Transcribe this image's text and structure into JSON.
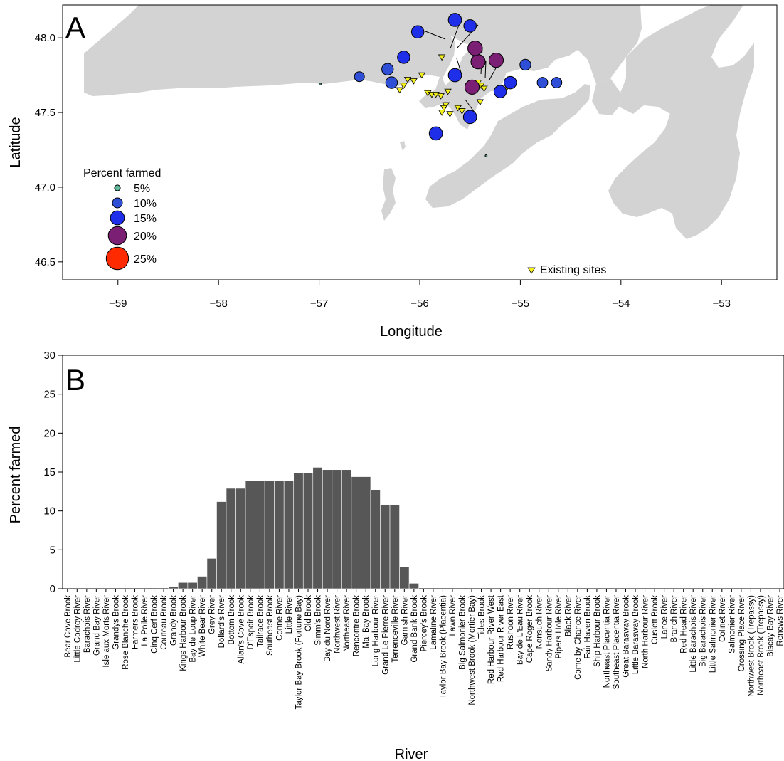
{
  "chart_data": [
    {
      "type": "scatter",
      "panel_label": "A",
      "xlabel": "Longitude",
      "ylabel": "Latitude",
      "xlim": [
        -59.55,
        -52.45
      ],
      "ylim": [
        46.38,
        48.22
      ],
      "xticks": [
        -59,
        -58,
        -57,
        -56,
        -55,
        -54,
        -53
      ],
      "xtick_labels": [
        "−59",
        "−58",
        "−57",
        "−56",
        "−55",
        "−54",
        "−53"
      ],
      "yticks": [
        46.5,
        47.0,
        47.5,
        48.0
      ],
      "ytick_labels": [
        "46.5",
        "47.0",
        "47.5",
        "48.0"
      ],
      "background": "land map of southern Newfoundland",
      "size_legend": {
        "title": "Percent farmed",
        "entries": [
          {
            "label": "5%",
            "value": 5,
            "color": "#5fb89a"
          },
          {
            "label": "10%",
            "value": 10,
            "color": "#2f4fd6"
          },
          {
            "label": "15%",
            "value": 15,
            "color": "#1f2ee8"
          },
          {
            "label": "20%",
            "value": 20,
            "color": "#7a1f74"
          },
          {
            "label": "25%",
            "value": 25,
            "color": "#ff2a00"
          }
        ]
      },
      "sites_legend": {
        "label": "Existing sites",
        "color": "#f2ef1c"
      },
      "colors": {
        "land": "#d3d3d3",
        "c5": "#5fb89a",
        "c10": "#2f4fd6",
        "c15": "#1f2ee8",
        "c20": "#7a1f74",
        "c25": "#ff2a00"
      },
      "rivers": [
        {
          "lon": -56.99,
          "lat": 47.69,
          "pct": 0.3
        },
        {
          "lon": -55.34,
          "lat": 47.21,
          "pct": 0.3
        },
        {
          "lon": -56.6,
          "lat": 47.74,
          "pct": 10
        },
        {
          "lon": -56.32,
          "lat": 47.79,
          "pct": 12
        },
        {
          "lon": -56.28,
          "lat": 47.7,
          "pct": 12
        },
        {
          "lon": -56.16,
          "lat": 47.87,
          "pct": 13
        },
        {
          "lon": -56.02,
          "lat": 48.04,
          "pct": 13
        },
        {
          "lon": -55.65,
          "lat": 48.12,
          "pct": 14
        },
        {
          "lon": -55.5,
          "lat": 48.08,
          "pct": 13
        },
        {
          "lon": -55.65,
          "lat": 47.75,
          "pct": 14
        },
        {
          "lon": -55.45,
          "lat": 47.93,
          "pct": 15.5
        },
        {
          "lon": -55.42,
          "lat": 47.84,
          "pct": 15.3
        },
        {
          "lon": -55.24,
          "lat": 47.85,
          "pct": 15.3
        },
        {
          "lon": -55.48,
          "lat": 47.67,
          "pct": 15.3
        },
        {
          "lon": -55.5,
          "lat": 47.47,
          "pct": 14
        },
        {
          "lon": -55.2,
          "lat": 47.64,
          "pct": 13
        },
        {
          "lon": -55.1,
          "lat": 47.7,
          "pct": 13
        },
        {
          "lon": -54.95,
          "lat": 47.82,
          "pct": 11.2
        },
        {
          "lon": -54.78,
          "lat": 47.7,
          "pct": 10.7
        },
        {
          "lon": -54.64,
          "lat": 47.7,
          "pct": 10.7
        },
        {
          "lon": -55.84,
          "lat": 47.36,
          "pct": 14
        }
      ],
      "sites": [
        {
          "lon": -55.78,
          "lat": 47.87
        },
        {
          "lon": -55.98,
          "lat": 47.75
        },
        {
          "lon": -56.12,
          "lat": 47.72
        },
        {
          "lon": -56.06,
          "lat": 47.71
        },
        {
          "lon": -56.16,
          "lat": 47.68
        },
        {
          "lon": -56.2,
          "lat": 47.65
        },
        {
          "lon": -55.92,
          "lat": 47.63
        },
        {
          "lon": -55.88,
          "lat": 47.62
        },
        {
          "lon": -55.84,
          "lat": 47.62
        },
        {
          "lon": -55.79,
          "lat": 47.61
        },
        {
          "lon": -55.72,
          "lat": 47.64
        },
        {
          "lon": -55.74,
          "lat": 47.55
        },
        {
          "lon": -55.76,
          "lat": 47.53
        },
        {
          "lon": -55.78,
          "lat": 47.5
        },
        {
          "lon": -55.7,
          "lat": 47.49
        },
        {
          "lon": -55.62,
          "lat": 47.53
        },
        {
          "lon": -55.58,
          "lat": 47.51
        },
        {
          "lon": -55.42,
          "lat": 47.7
        },
        {
          "lon": -55.39,
          "lat": 47.68
        },
        {
          "lon": -55.36,
          "lat": 47.66
        },
        {
          "lon": -55.4,
          "lat": 47.57
        },
        {
          "lon": -55.46,
          "lat": 47.66
        },
        {
          "lon": -55.15,
          "lat": 47.65
        }
      ]
    },
    {
      "type": "bar",
      "panel_label": "B",
      "xlabel": "River",
      "ylabel": "Percent farmed",
      "ylim": [
        0,
        30
      ],
      "yticks": [
        0,
        5,
        10,
        15,
        20,
        25,
        30
      ],
      "categories": [
        "Bear Cove Brook",
        "Little Codroy River",
        "Barachois River",
        "Grand Bay River",
        "Isle aux Morts River",
        "Grandys Brook",
        "Rose Blanche Brook",
        "Farmers Brook",
        "La Poile River",
        "Cinq Cerf Brook",
        "Couteau Brook",
        "Grandy Brook",
        "Kings Harbour Brook",
        "Bay de Loup River",
        "White Bear River",
        "Grey River",
        "Dollard's River",
        "Bottom Brook",
        "Allan's Cove Brook",
        "D'Espoir Brook",
        "Tailrace Brook",
        "Southeast Brook",
        "Conne River",
        "Little River",
        "Taylor Bay Brook (Fortune Bay)",
        "Old Brook",
        "Simm's Brook",
        "Bay du Nord River",
        "Northwest River",
        "Northeast River",
        "Rencontre Brook",
        "Mal Bay Brook",
        "Long Harbour River",
        "Grand Le Pierre River",
        "Terrenceville River",
        "Garnish River",
        "Grand Bank Brook",
        "Piercey's Brook",
        "Lamaline River",
        "Taylor Bay Brook (Placentia)",
        "Lawn River",
        "Big Salmonier Brook",
        "Northwest Brook (Mortier Bay)",
        "Tides Brook",
        "Red Harbour River West",
        "Red Harbour River East",
        "Rushoon River",
        "Bay de L'Eau River",
        "Cape Roger Brook",
        "Nonsuch River",
        "Sandy Harbour River",
        "Pipers Hole River",
        "Black River",
        "Come by Chance River",
        "Fair Haven Brook",
        "Ship Harbour Brook",
        "Northeast Placentia River",
        "Southeast Placentia River",
        "Great Barasway Brook",
        "Little Barasway Brook",
        "North Harbour River",
        "Cuslett Brook",
        "Lance River",
        "Branch River",
        "Red Head River",
        "Little Barachois River",
        "Big Barachois River",
        "Little Salmonier River",
        "Colinet River",
        "Salmonier River",
        "Crossing Place River",
        "Northwest Brook (Trepassy)",
        "Northeast Brook (Trepassy)",
        "Biscay Bay River",
        "Renews River"
      ],
      "values": [
        0,
        0,
        0,
        0,
        0,
        0,
        0,
        0,
        0,
        0,
        0,
        0.3,
        0.8,
        0.8,
        1.6,
        3.9,
        11.2,
        12.9,
        12.9,
        13.9,
        13.9,
        13.9,
        13.9,
        13.9,
        14.9,
        14.9,
        15.6,
        15.3,
        15.3,
        15.3,
        14.4,
        14.4,
        12.7,
        10.8,
        10.8,
        2.8,
        0.7,
        0,
        0,
        0,
        0,
        0,
        0,
        0,
        0,
        0,
        0,
        0,
        0,
        0,
        0,
        0,
        0,
        0,
        0,
        0,
        0,
        0,
        0,
        0,
        0,
        0,
        0,
        0,
        0,
        0,
        0,
        0,
        0,
        0,
        0,
        0,
        0,
        0,
        0
      ],
      "bar_color": "#575757"
    }
  ]
}
